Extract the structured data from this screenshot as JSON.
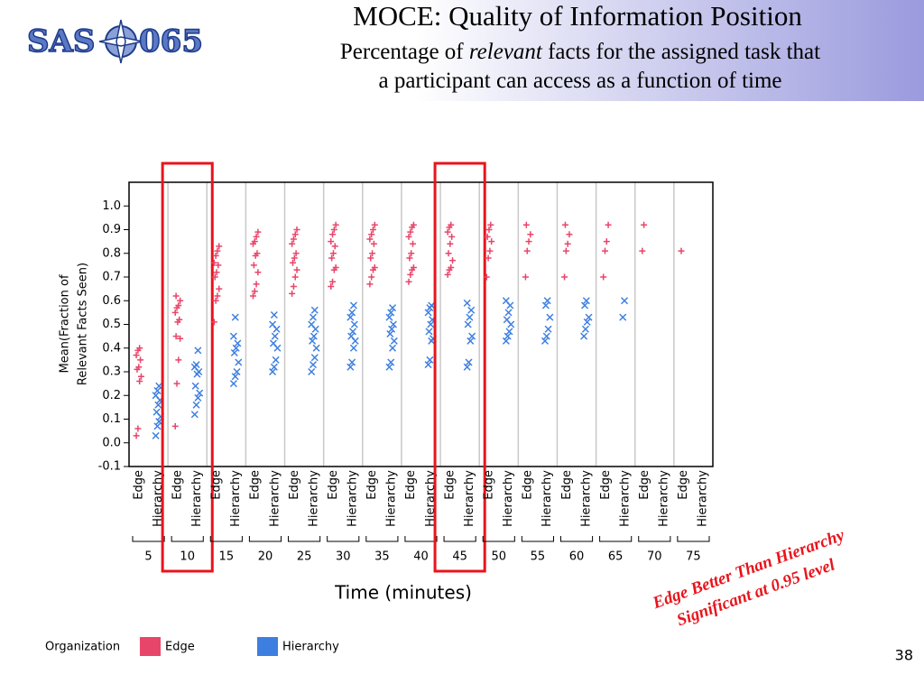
{
  "logo": {
    "left": "SAS",
    "right": "065"
  },
  "page_number": 38,
  "chart_data": {
    "type": "strip",
    "title": "MOCE: Quality of Information Position",
    "subtitle": [
      "Percentage of",
      "relevant",
      "facts for the assigned task that",
      "a participant can access as a function of time"
    ],
    "ylabel": [
      "Mean(Fraction of",
      "Relevant Facts Seen)"
    ],
    "xlabel": "Time (minutes)",
    "groups": [
      5,
      10,
      15,
      20,
      25,
      30,
      35,
      40,
      45,
      50,
      55,
      60,
      65,
      70,
      75
    ],
    "ylim": [
      -0.1,
      1.1
    ],
    "yticks": [
      -0.1,
      {
        "value": 0,
        "label": "0.0"
      },
      0.1,
      0.2,
      0.3,
      0.4,
      0.5,
      0.6,
      0.7,
      0.8,
      0.9,
      {
        "value": 1,
        "label": "1.0"
      }
    ],
    "grid": true,
    "highlight_groups": [
      10,
      45
    ],
    "highlight_color": "#e8141c",
    "legend_title": "Organization",
    "series": [
      {
        "name": "Edge",
        "color": "#e8456a",
        "marker": "plus",
        "values": [
          [
            0.03,
            0.06,
            0.26,
            0.28,
            0.31,
            0.32,
            0.35,
            0.37,
            0.39,
            0.4
          ],
          [
            0.07,
            0.25,
            0.35,
            0.44,
            0.45,
            0.51,
            0.52,
            0.55,
            0.57,
            0.58,
            0.6,
            0.62
          ],
          [
            0.51,
            0.6,
            0.62,
            0.65,
            0.7,
            0.72,
            0.75,
            0.76,
            0.79,
            0.81,
            0.83
          ],
          [
            0.62,
            0.64,
            0.67,
            0.72,
            0.75,
            0.79,
            0.8,
            0.84,
            0.85,
            0.87,
            0.89
          ],
          [
            0.63,
            0.66,
            0.7,
            0.73,
            0.76,
            0.78,
            0.8,
            0.84,
            0.86,
            0.88,
            0.9
          ],
          [
            0.66,
            0.68,
            0.73,
            0.74,
            0.78,
            0.8,
            0.83,
            0.85,
            0.88,
            0.9,
            0.92
          ],
          [
            0.67,
            0.7,
            0.73,
            0.74,
            0.78,
            0.8,
            0.84,
            0.86,
            0.88,
            0.9,
            0.92
          ],
          [
            0.68,
            0.71,
            0.73,
            0.74,
            0.78,
            0.8,
            0.84,
            0.87,
            0.89,
            0.91,
            0.92
          ],
          [
            0.71,
            0.73,
            0.74,
            0.77,
            0.8,
            0.84,
            0.87,
            0.89,
            0.91,
            0.92
          ],
          [
            0.7,
            0.78,
            0.81,
            0.85,
            0.87,
            0.9,
            0.92
          ],
          [
            0.7,
            0.81,
            0.85,
            0.88,
            0.92
          ],
          [
            0.7,
            0.81,
            0.84,
            0.88,
            0.92
          ],
          [
            0.7,
            0.81,
            0.85,
            0.92
          ],
          [
            0.81,
            0.92
          ],
          [
            0.81
          ]
        ]
      },
      {
        "name": "Hierarchy",
        "color": "#3d7fe0",
        "marker": "cross",
        "values": [
          [
            0.03,
            0.07,
            0.09,
            0.11,
            0.13,
            0.16,
            0.18,
            0.2,
            0.22,
            0.24
          ],
          [
            0.12,
            0.16,
            0.19,
            0.21,
            0.24,
            0.29,
            0.3,
            0.32,
            0.33,
            0.39
          ],
          [
            0.25,
            0.28,
            0.3,
            0.34,
            0.38,
            0.4,
            0.42,
            0.45,
            0.53
          ],
          [
            0.3,
            0.32,
            0.35,
            0.4,
            0.42,
            0.45,
            0.48,
            0.5,
            0.54
          ],
          [
            0.3,
            0.33,
            0.36,
            0.4,
            0.43,
            0.45,
            0.48,
            0.5,
            0.53,
            0.56
          ],
          [
            0.32,
            0.34,
            0.4,
            0.43,
            0.45,
            0.47,
            0.5,
            0.53,
            0.55,
            0.58
          ],
          [
            0.32,
            0.34,
            0.4,
            0.43,
            0.46,
            0.48,
            0.5,
            0.53,
            0.55,
            0.57
          ],
          [
            0.33,
            0.35,
            0.43,
            0.44,
            0.47,
            0.5,
            0.52,
            0.55,
            0.57,
            0.58
          ],
          [
            0.32,
            0.34,
            0.43,
            0.45,
            0.5,
            0.53,
            0.56,
            0.59
          ],
          [
            0.43,
            0.45,
            0.47,
            0.5,
            0.52,
            0.55,
            0.58,
            0.6
          ],
          [
            0.43,
            0.45,
            0.48,
            0.53,
            0.58,
            0.6
          ],
          [
            0.45,
            0.48,
            0.51,
            0.53,
            0.58,
            0.6
          ],
          [
            0.53,
            0.6
          ],
          [],
          []
        ]
      }
    ],
    "annotation": [
      "Edge Better Than Hierarchy",
      "Significant at 0.95 level"
    ],
    "annotation_color": "#e8141c"
  }
}
